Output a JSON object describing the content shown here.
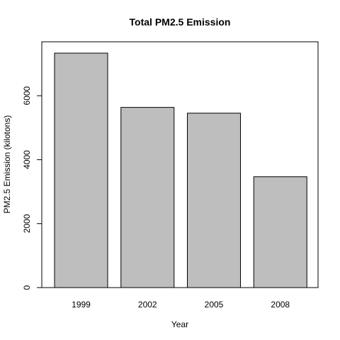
{
  "chart_data": {
    "type": "bar",
    "title": "Total PM2.5 Emission",
    "xlabel": "Year",
    "ylabel": "PM2.5 Emission (kilotons)",
    "categories": [
      "1999",
      "2002",
      "2005",
      "2008"
    ],
    "values": [
      7332,
      5635,
      5454,
      3465
    ],
    "ylim": [
      0,
      7332
    ],
    "yticks": [
      0,
      2000,
      4000,
      6000
    ],
    "ytick_labels": [
      "0",
      "2000",
      "4000",
      "6000"
    ],
    "grid": false,
    "legend": "none",
    "bar_color": "#bebebe",
    "bar_border_color": "#000000"
  }
}
